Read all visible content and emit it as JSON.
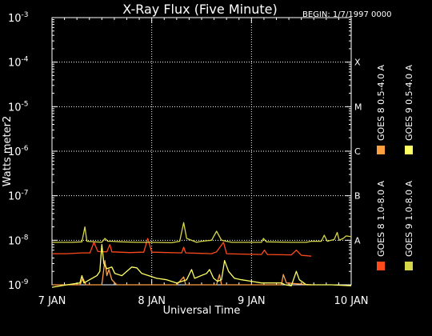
{
  "chart_data": {
    "type": "line",
    "title": "X-Ray Flux (Five Minute)",
    "subtitle": "BEGIN: 1/7/1997 0000",
    "xlabel": "Universal Time",
    "ylabel": "Watts meter2",
    "x_ticks": [
      "7 JAN",
      "8 JAN",
      "9 JAN",
      "10 JAN"
    ],
    "y_scale": "log",
    "ylim": [
      1e-09,
      0.001
    ],
    "y_ticks": [
      "10",
      "10",
      "10",
      "10",
      "10",
      "10",
      "10"
    ],
    "y_tick_exponents": [
      "-3",
      "-4",
      "-5",
      "-6",
      "-7",
      "-8",
      "-9"
    ],
    "flare_classes": [
      {
        "label": "X",
        "value": 0.0001
      },
      {
        "label": "M",
        "value": 1e-05
      },
      {
        "label": "C",
        "value": 1e-06
      },
      {
        "label": "B",
        "value": 1e-07
      },
      {
        "label": "A",
        "value": 1e-08
      }
    ],
    "grid": true,
    "series": [
      {
        "name": "GOES 8 1.0-8.0 A",
        "color": "#ff4a1c",
        "points": [
          [
            0.0,
            5e-09
          ],
          [
            0.15,
            5e-09
          ],
          [
            0.3,
            5.2e-09
          ],
          [
            0.38,
            5.2e-09
          ],
          [
            0.42,
            9e-09
          ],
          [
            0.46,
            5.6e-09
          ],
          [
            0.55,
            5.5e-09
          ],
          [
            0.58,
            8e-09
          ],
          [
            0.6,
            5.5e-09
          ],
          [
            0.78,
            5.3e-09
          ],
          [
            0.92,
            5.4e-09
          ],
          [
            0.96,
            1.1e-08
          ],
          [
            1.0,
            5.4e-09
          ],
          [
            1.3,
            5.2e-09
          ],
          [
            1.32,
            7e-09
          ],
          [
            1.34,
            5.2e-09
          ],
          [
            1.6,
            5e-09
          ],
          [
            1.65,
            5.5e-09
          ],
          [
            1.72,
            9e-09
          ],
          [
            1.75,
            5e-09
          ],
          [
            1.9,
            4.9e-09
          ],
          [
            2.1,
            4.8e-09
          ],
          [
            2.13,
            6e-09
          ],
          [
            2.16,
            4.8e-09
          ],
          [
            2.4,
            4.7e-09
          ],
          [
            2.45,
            6e-09
          ],
          [
            2.5,
            4.6e-09
          ],
          [
            2.6,
            4.4e-09
          ]
        ]
      },
      {
        "name": "GOES 8 0.5-4.0 A",
        "color": "#ffa040",
        "points": [
          [
            0.0,
            1e-09
          ],
          [
            0.2,
            1e-09
          ],
          [
            0.28,
            1e-09
          ],
          [
            0.31,
            1.4e-09
          ],
          [
            0.34,
            1e-09
          ],
          [
            0.5,
            1e-09
          ],
          [
            0.53,
            3.5e-09
          ],
          [
            0.55,
            1.6e-09
          ],
          [
            0.57,
            2.2e-09
          ],
          [
            0.6,
            1.3e-09
          ],
          [
            0.65,
            1e-09
          ],
          [
            0.9,
            1e-09
          ],
          [
            1.0,
            1e-09
          ],
          [
            1.25,
            1e-09
          ],
          [
            1.32,
            1.5e-09
          ],
          [
            1.34,
            1e-09
          ],
          [
            1.65,
            1e-09
          ],
          [
            1.68,
            1.7e-09
          ],
          [
            1.7,
            1e-09
          ],
          [
            1.9,
            1e-09
          ],
          [
            2.2,
            1e-09
          ],
          [
            2.3,
            1e-09
          ],
          [
            2.32,
            1.7e-09
          ],
          [
            2.35,
            1.1e-09
          ],
          [
            2.6,
            1e-09
          ]
        ]
      },
      {
        "name": "GOES 9 0.5-4.0 A",
        "color": "#ffff66",
        "points": [
          [
            0.0,
            8.8e-10
          ],
          [
            0.15,
            1e-09
          ],
          [
            0.28,
            1.1e-09
          ],
          [
            0.3,
            1.6e-09
          ],
          [
            0.32,
            1.1e-09
          ],
          [
            0.45,
            1.6e-09
          ],
          [
            0.48,
            2e-09
          ],
          [
            0.5,
            8e-09
          ],
          [
            0.52,
            3e-09
          ],
          [
            0.55,
            2.3e-09
          ],
          [
            0.6,
            2.5e-09
          ],
          [
            0.63,
            1.8e-09
          ],
          [
            0.7,
            1.6e-09
          ],
          [
            0.8,
            2.5e-09
          ],
          [
            0.85,
            2.4e-09
          ],
          [
            0.9,
            1.8e-09
          ],
          [
            1.05,
            1.4e-09
          ],
          [
            1.15,
            1.3e-09
          ],
          [
            1.25,
            1.1e-09
          ],
          [
            1.35,
            1.3e-09
          ],
          [
            1.4,
            2.2e-09
          ],
          [
            1.43,
            1.4e-09
          ],
          [
            1.55,
            1.8e-09
          ],
          [
            1.58,
            2.2e-09
          ],
          [
            1.62,
            1.4e-09
          ],
          [
            1.66,
            1.2e-09
          ],
          [
            1.7,
            1.3e-09
          ],
          [
            1.73,
            3.5e-09
          ],
          [
            1.77,
            2e-09
          ],
          [
            1.83,
            1.4e-09
          ],
          [
            1.9,
            1.3e-09
          ],
          [
            2.0,
            1.2e-09
          ],
          [
            2.1,
            1.1e-09
          ],
          [
            2.3,
            1.1e-09
          ],
          [
            2.34,
            1e-09
          ],
          [
            2.4,
            9.5e-10
          ],
          [
            2.45,
            2e-09
          ],
          [
            2.48,
            1.3e-09
          ],
          [
            2.55,
            1e-09
          ],
          [
            2.8,
            1e-09
          ],
          [
            3.0,
            9.5e-10
          ]
        ]
      },
      {
        "name": "GOES 9 1.0-8.0 A",
        "color": "#d6d64a",
        "points": [
          [
            0.0,
            9e-09
          ],
          [
            0.2,
            9e-09
          ],
          [
            0.3,
            9.2e-09
          ],
          [
            0.33,
            2e-08
          ],
          [
            0.35,
            9.5e-09
          ],
          [
            0.5,
            9e-09
          ],
          [
            0.53,
            1.1e-08
          ],
          [
            0.56,
            9.5e-09
          ],
          [
            0.6,
            9.5e-09
          ],
          [
            0.7,
            9.2e-09
          ],
          [
            0.85,
            9e-09
          ],
          [
            1.0,
            9e-09
          ],
          [
            1.2,
            8.8e-09
          ],
          [
            1.28,
            9.5e-09
          ],
          [
            1.32,
            2.5e-08
          ],
          [
            1.35,
            1.1e-08
          ],
          [
            1.45,
            9e-09
          ],
          [
            1.5,
            9.5e-09
          ],
          [
            1.6,
            1e-08
          ],
          [
            1.65,
            1.6e-08
          ],
          [
            1.7,
            1e-08
          ],
          [
            1.8,
            9e-09
          ],
          [
            2.0,
            9e-09
          ],
          [
            2.1,
            9e-09
          ],
          [
            2.12,
            1.1e-08
          ],
          [
            2.15,
            9.2e-09
          ],
          [
            2.4,
            9e-09
          ],
          [
            2.55,
            9e-09
          ],
          [
            2.6,
            9.5e-09
          ],
          [
            2.7,
            9.5e-09
          ],
          [
            2.73,
            1.3e-08
          ],
          [
            2.76,
            9.5e-09
          ],
          [
            2.83,
            1.05e-08
          ],
          [
            2.86,
            1.5e-08
          ],
          [
            2.88,
            1e-08
          ],
          [
            2.92,
            1.1e-08
          ],
          [
            2.95,
            1.25e-08
          ],
          [
            3.0,
            1.2e-08
          ]
        ]
      }
    ],
    "legend_placement": "right, vertical"
  }
}
